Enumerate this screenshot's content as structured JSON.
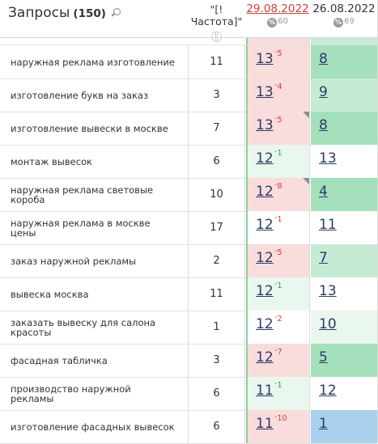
{
  "header": {
    "title": "Запросы",
    "count": "(150)",
    "freq_label": "\"[!Частота]\"",
    "dates": [
      {
        "label": "29.08.2022",
        "pct": "60",
        "color": "#d23b3b"
      },
      {
        "label": "26.08.2022",
        "pct": "69",
        "color": "#333333"
      }
    ]
  },
  "colors": {
    "red_bg": "#f9dcdc",
    "green_light": "#c6ebd5",
    "green_mid": "#a3e0bb",
    "green_pale": "#eaf7ee",
    "blue": "#a9d1ee",
    "delta_down": "#d23b3b",
    "delta_up": "#2e9b57"
  },
  "rows": [
    {
      "query": "наружная реклама изготовление",
      "freq": "11",
      "p1": "13",
      "d1": "5",
      "d1dir": "down",
      "p1bg": "red",
      "p1corner": false,
      "p2": "8",
      "p2bg": "green_mid"
    },
    {
      "query": "изготовление букв на заказ",
      "freq": "3",
      "p1": "13",
      "d1": "4",
      "d1dir": "down",
      "p1bg": "red",
      "p1corner": false,
      "p2": "9",
      "p2bg": "green_light"
    },
    {
      "query": "изготовление вывески в москве",
      "freq": "7",
      "p1": "13",
      "d1": "5",
      "d1dir": "down",
      "p1bg": "red",
      "p1corner": true,
      "p2": "8",
      "p2bg": "green_mid"
    },
    {
      "query": "монтаж вывесок",
      "freq": "6",
      "p1": "12",
      "d1": "1",
      "d1dir": "up",
      "p1bg": "green_pale",
      "p1corner": false,
      "p2": "13",
      "p2bg": "white"
    },
    {
      "query": "наружная реклама световые короба",
      "freq": "10",
      "p1": "12",
      "d1": "8",
      "d1dir": "down",
      "p1bg": "red",
      "p1corner": true,
      "p2": "4",
      "p2bg": "green_mid"
    },
    {
      "query": "наружная реклама в москве цены",
      "freq": "17",
      "p1": "12",
      "d1": "1",
      "d1dir": "down",
      "p1bg": "white",
      "p1corner": false,
      "p2": "11",
      "p2bg": "white"
    },
    {
      "query": "заказ наружной рекламы",
      "freq": "2",
      "p1": "12",
      "d1": "5",
      "d1dir": "down",
      "p1bg": "red",
      "p1corner": false,
      "p2": "7",
      "p2bg": "green_light"
    },
    {
      "query": "вывеска москва",
      "freq": "11",
      "p1": "12",
      "d1": "1",
      "d1dir": "up",
      "p1bg": "green_pale",
      "p1corner": false,
      "p2": "13",
      "p2bg": "white"
    },
    {
      "query": "заказать вывеску для салона красоты",
      "freq": "1",
      "p1": "12",
      "d1": "2",
      "d1dir": "down",
      "p1bg": "white",
      "p1corner": false,
      "p2": "10",
      "p2bg": "green_pale"
    },
    {
      "query": "фасадная табличка",
      "freq": "3",
      "p1": "12",
      "d1": "7",
      "d1dir": "down",
      "p1bg": "red",
      "p1corner": false,
      "p2": "5",
      "p2bg": "green_mid"
    },
    {
      "query": "производство наружной рекламы",
      "freq": "6",
      "p1": "11",
      "d1": "1",
      "d1dir": "up",
      "p1bg": "green_pale",
      "p1corner": false,
      "p2": "12",
      "p2bg": "white"
    },
    {
      "query": "изготовление фасадных вывесок",
      "freq": "6",
      "p1": "11",
      "d1": "10",
      "d1dir": "down",
      "p1bg": "red",
      "p1corner": false,
      "p2": "1",
      "p2bg": "blue"
    }
  ]
}
